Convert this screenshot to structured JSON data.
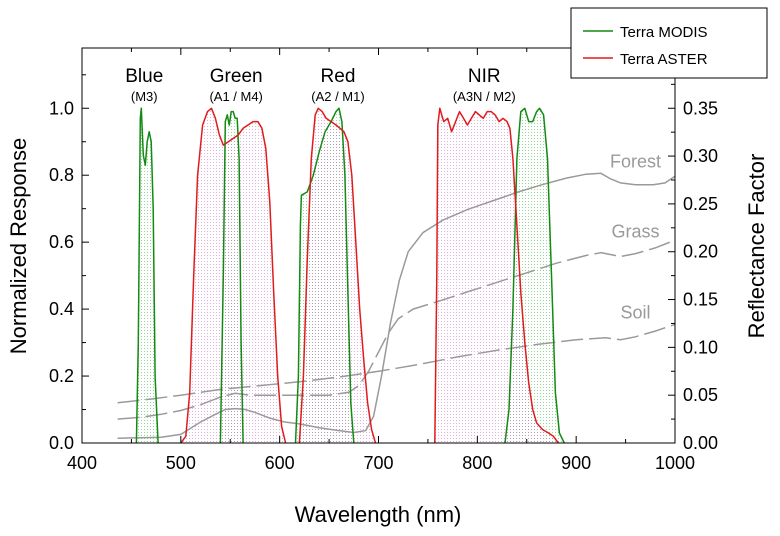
{
  "chart_data": {
    "type": "line",
    "xlabel": "Wavelength (nm)",
    "ylabel": "Normalized Response",
    "y2label": "Reflectance Factor",
    "xlim": [
      400,
      1000
    ],
    "ylim": [
      0,
      1.18
    ],
    "y2lim": [
      0,
      0.413
    ],
    "x_ticks": [
      "400",
      "500",
      "600",
      "700",
      "800",
      "900",
      "1000"
    ],
    "y_ticks": [
      "0.0",
      "0.2",
      "0.4",
      "0.6",
      "0.8",
      "1.0"
    ],
    "y2_ticks": [
      "0.00",
      "0.05",
      "0.10",
      "0.15",
      "0.20",
      "0.25",
      "0.30",
      "0.35"
    ],
    "colors": {
      "modis": "#138a13",
      "aster": "#e01b1b",
      "reflectance": "#9a9a9a"
    },
    "legend": {
      "placement": "top-right-outside",
      "items": [
        {
          "label": "Terra MODIS",
          "color": "#138a13"
        },
        {
          "label": "Terra ASTER",
          "color": "#e01b1b"
        }
      ]
    },
    "band_labels": [
      {
        "name": "Blue",
        "sub": "(M3)",
        "x": 463
      },
      {
        "name": "Green",
        "sub": "(A1 / M4)",
        "x": 556
      },
      {
        "name": "Red",
        "sub": "(A2 / M1)",
        "x": 659
      },
      {
        "name": "NIR",
        "sub": "(A3N / M2)",
        "x": 807
      }
    ],
    "surface_labels": [
      {
        "name": "Forest",
        "x": 960,
        "y2": 0.288
      },
      {
        "name": "Grass",
        "x": 960,
        "y2": 0.215
      },
      {
        "name": "Soil",
        "x": 960,
        "y2": 0.13
      }
    ],
    "series": [
      {
        "name": "Terra MODIS",
        "axis": "left",
        "style": "solid-fill",
        "bands": [
          [
            [
              455,
              0
            ],
            [
              457,
              0.3
            ],
            [
              459,
              0.97
            ],
            [
              460,
              1.0
            ],
            [
              462,
              0.86
            ],
            [
              464,
              0.83
            ],
            [
              466,
              0.9
            ],
            [
              468,
              0.93
            ],
            [
              470,
              0.9
            ],
            [
              472,
              0.7
            ],
            [
              474,
              0.2
            ],
            [
              477,
              0
            ]
          ],
          [
            [
              540,
              0
            ],
            [
              543,
              0.5
            ],
            [
              545,
              0.96
            ],
            [
              547,
              0.98
            ],
            [
              549,
              0.95
            ],
            [
              551,
              0.99
            ],
            [
              553,
              0.99
            ],
            [
              555,
              0.97
            ],
            [
              557,
              0.97
            ],
            [
              559,
              0.85
            ],
            [
              561,
              0.3
            ],
            [
              563,
              0
            ]
          ],
          [
            [
              616,
              0
            ],
            [
              619,
              0.2
            ],
            [
              621,
              0.65
            ],
            [
              622,
              0.74
            ],
            [
              628,
              0.75
            ],
            [
              634,
              0.8
            ],
            [
              640,
              0.87
            ],
            [
              646,
              0.93
            ],
            [
              652,
              0.96
            ],
            [
              657,
              0.99
            ],
            [
              660,
              1.0
            ],
            [
              663,
              0.96
            ],
            [
              666,
              0.8
            ],
            [
              669,
              0.45
            ],
            [
              672,
              0.12
            ],
            [
              675,
              0
            ]
          ],
          [
            [
              828,
              0
            ],
            [
              832,
              0.1
            ],
            [
              836,
              0.4
            ],
            [
              840,
              0.85
            ],
            [
              844,
              0.99
            ],
            [
              848,
              1.0
            ],
            [
              852,
              0.96
            ],
            [
              856,
              0.96
            ],
            [
              860,
              0.99
            ],
            [
              863,
              1.0
            ],
            [
              867,
              0.98
            ],
            [
              871,
              0.85
            ],
            [
              875,
              0.5
            ],
            [
              879,
              0.15
            ],
            [
              883,
              0.03
            ],
            [
              888,
              0
            ]
          ]
        ]
      },
      {
        "name": "Terra ASTER",
        "axis": "left",
        "style": "solid-fill",
        "bands": [
          [
            [
              500,
              0
            ],
            [
              505,
              0.02
            ],
            [
              509,
              0.15
            ],
            [
              513,
              0.5
            ],
            [
              517,
              0.8
            ],
            [
              522,
              0.95
            ],
            [
              527,
              0.99
            ],
            [
              531,
              1.0
            ],
            [
              535,
              0.97
            ],
            [
              539,
              0.92
            ],
            [
              543,
              0.89
            ],
            [
              548,
              0.9
            ],
            [
              553,
              0.91
            ],
            [
              558,
              0.92
            ],
            [
              563,
              0.94
            ],
            [
              568,
              0.95
            ],
            [
              573,
              0.96
            ],
            [
              578,
              0.96
            ],
            [
              582,
              0.94
            ],
            [
              586,
              0.88
            ],
            [
              590,
              0.72
            ],
            [
              594,
              0.45
            ],
            [
              598,
              0.2
            ],
            [
              602,
              0.05
            ],
            [
              606,
              0
            ]
          ],
          [
            [
              620,
              0
            ],
            [
              624,
              0.2
            ],
            [
              628,
              0.55
            ],
            [
              632,
              0.85
            ],
            [
              636,
              0.98
            ],
            [
              639,
              1.0
            ],
            [
              643,
              0.99
            ],
            [
              647,
              0.97
            ],
            [
              652,
              0.96
            ],
            [
              657,
              0.95
            ],
            [
              661,
              0.94
            ],
            [
              665,
              0.93
            ],
            [
              669,
              0.9
            ],
            [
              673,
              0.8
            ],
            [
              677,
              0.6
            ],
            [
              681,
              0.4
            ],
            [
              685,
              0.25
            ],
            [
              689,
              0.12
            ],
            [
              693,
              0.04
            ],
            [
              697,
              0
            ]
          ],
          [
            [
              757,
              0
            ],
            [
              759,
              0.5
            ],
            [
              760,
              0.95
            ],
            [
              762,
              1.0
            ],
            [
              766,
              0.96
            ],
            [
              770,
              0.97
            ],
            [
              774,
              0.93
            ],
            [
              778,
              0.96
            ],
            [
              782,
              0.99
            ],
            [
              786,
              0.97
            ],
            [
              790,
              0.95
            ],
            [
              794,
              0.97
            ],
            [
              798,
              0.99
            ],
            [
              802,
              0.98
            ],
            [
              806,
              0.97
            ],
            [
              810,
              0.99
            ],
            [
              814,
              0.99
            ],
            [
              818,
              0.98
            ],
            [
              822,
              0.96
            ],
            [
              826,
              0.97
            ],
            [
              830,
              0.96
            ],
            [
              833,
              0.94
            ],
            [
              836,
              0.85
            ],
            [
              840,
              0.65
            ],
            [
              844,
              0.45
            ],
            [
              848,
              0.3
            ],
            [
              852,
              0.18
            ],
            [
              856,
              0.1
            ],
            [
              860,
              0.06
            ],
            [
              866,
              0.04
            ],
            [
              872,
              0.03
            ],
            [
              877,
              0.02
            ],
            [
              882,
              0
            ]
          ]
        ]
      },
      {
        "name": "Forest",
        "axis": "right",
        "style": "solid",
        "points": [
          [
            436,
            0.005
          ],
          [
            460,
            0.0055
          ],
          [
            480,
            0.006
          ],
          [
            500,
            0.009
          ],
          [
            520,
            0.022
          ],
          [
            535,
            0.03
          ],
          [
            545,
            0.035
          ],
          [
            555,
            0.036
          ],
          [
            565,
            0.035
          ],
          [
            575,
            0.032
          ],
          [
            590,
            0.026
          ],
          [
            605,
            0.022
          ],
          [
            620,
            0.02
          ],
          [
            640,
            0.016
          ],
          [
            660,
            0.013
          ],
          [
            675,
            0.011
          ],
          [
            687,
            0.013
          ],
          [
            695,
            0.028
          ],
          [
            703,
            0.07
          ],
          [
            712,
            0.125
          ],
          [
            721,
            0.17
          ],
          [
            730,
            0.2
          ],
          [
            745,
            0.22
          ],
          [
            765,
            0.233
          ],
          [
            790,
            0.244
          ],
          [
            815,
            0.253
          ],
          [
            840,
            0.262
          ],
          [
            865,
            0.27
          ],
          [
            890,
            0.277
          ],
          [
            910,
            0.281
          ],
          [
            925,
            0.282
          ],
          [
            935,
            0.276
          ],
          [
            945,
            0.272
          ],
          [
            960,
            0.27
          ],
          [
            978,
            0.27
          ],
          [
            990,
            0.272
          ],
          [
            1000,
            0.279
          ]
        ]
      },
      {
        "name": "Grass",
        "axis": "right",
        "style": "dashed",
        "points": [
          [
            436,
            0.025
          ],
          [
            460,
            0.027
          ],
          [
            480,
            0.03
          ],
          [
            500,
            0.034
          ],
          [
            520,
            0.04
          ],
          [
            540,
            0.048
          ],
          [
            555,
            0.052
          ],
          [
            570,
            0.05
          ],
          [
            590,
            0.05
          ],
          [
            610,
            0.05
          ],
          [
            630,
            0.05
          ],
          [
            650,
            0.05
          ],
          [
            670,
            0.053
          ],
          [
            680,
            0.06
          ],
          [
            690,
            0.075
          ],
          [
            700,
            0.095
          ],
          [
            710,
            0.115
          ],
          [
            720,
            0.13
          ],
          [
            735,
            0.14
          ],
          [
            760,
            0.148
          ],
          [
            790,
            0.158
          ],
          [
            820,
            0.168
          ],
          [
            850,
            0.178
          ],
          [
            880,
            0.188
          ],
          [
            910,
            0.196
          ],
          [
            925,
            0.199
          ],
          [
            935,
            0.197
          ],
          [
            945,
            0.195
          ],
          [
            960,
            0.198
          ],
          [
            980,
            0.204
          ],
          [
            1000,
            0.212
          ]
        ]
      },
      {
        "name": "Soil",
        "axis": "right",
        "style": "dashed",
        "points": [
          [
            436,
            0.042
          ],
          [
            470,
            0.046
          ],
          [
            500,
            0.05
          ],
          [
            540,
            0.056
          ],
          [
            580,
            0.06
          ],
          [
            620,
            0.064
          ],
          [
            660,
            0.069
          ],
          [
            700,
            0.075
          ],
          [
            740,
            0.082
          ],
          [
            780,
            0.09
          ],
          [
            820,
            0.097
          ],
          [
            860,
            0.103
          ],
          [
            900,
            0.108
          ],
          [
            930,
            0.11
          ],
          [
            945,
            0.108
          ],
          [
            960,
            0.111
          ],
          [
            980,
            0.117
          ],
          [
            1000,
            0.124
          ]
        ]
      }
    ]
  }
}
